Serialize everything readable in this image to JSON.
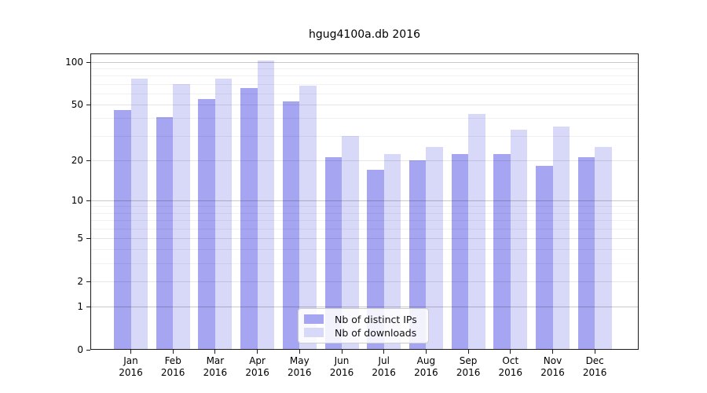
{
  "chart_data": {
    "type": "bar",
    "title": "hgug4100a.db 2016",
    "categories": [
      "Jan",
      "Feb",
      "Mar",
      "Apr",
      "May",
      "Jun",
      "Jul",
      "Aug",
      "Sep",
      "Oct",
      "Nov",
      "Dec"
    ],
    "x_year": "2016",
    "series": [
      {
        "name": "Nb of distinct IPs",
        "color": "#a5a5f2",
        "values": [
          46,
          41,
          55,
          66,
          53,
          21,
          17,
          20,
          22,
          22,
          18,
          21
        ]
      },
      {
        "name": "Nb of downloads",
        "color": "#d8d8f8",
        "values": [
          76,
          70,
          76,
          102,
          68,
          30,
          22,
          25,
          43,
          33,
          35,
          25
        ]
      }
    ],
    "yscale": "log1p",
    "y_ticks": [
      0,
      1,
      2,
      5,
      10,
      20,
      50,
      100
    ],
    "y_minor_ticks": [
      3,
      4,
      6,
      7,
      8,
      9,
      30,
      40,
      60,
      70,
      80,
      90
    ],
    "ylim": [
      0,
      115
    ],
    "xlabel": "",
    "ylabel": "",
    "grid": "horizontal",
    "legend_position": "lower-center-inside"
  }
}
